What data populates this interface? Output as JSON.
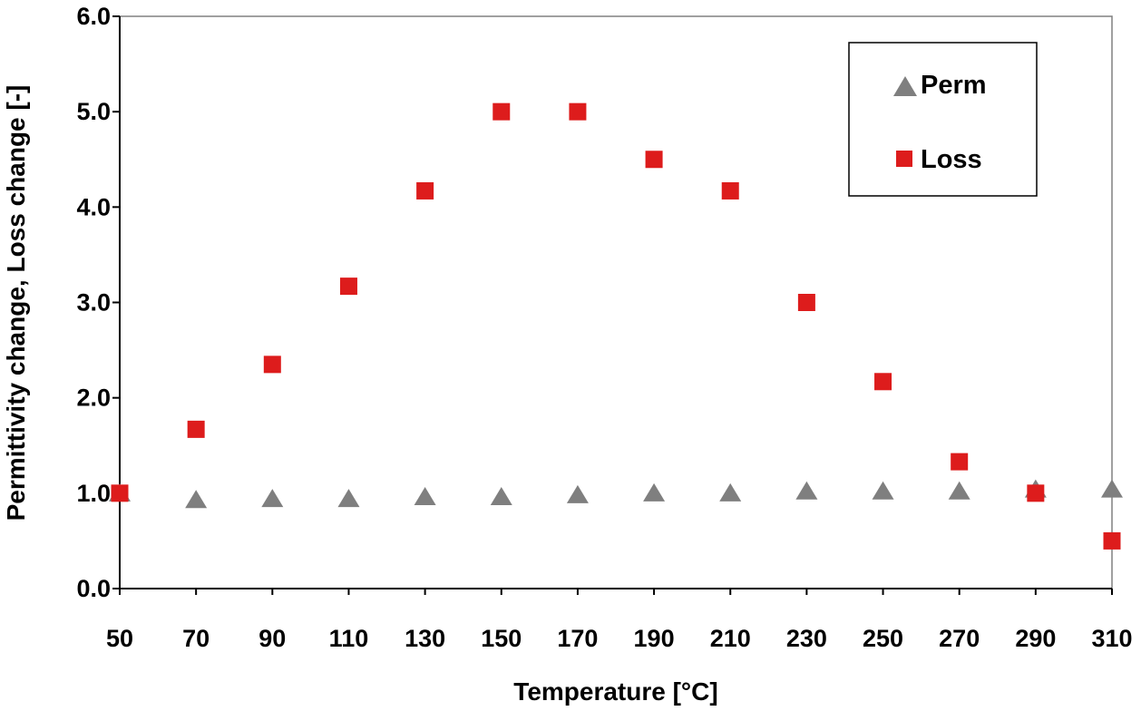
{
  "chart_data": {
    "type": "scatter",
    "title": "",
    "xlabel": "Temperature [°C]",
    "ylabel": "Permittivity change, Loss change [-]",
    "xlim": [
      50,
      310
    ],
    "ylim": [
      0.0,
      6.0
    ],
    "x_ticks": [
      "50",
      "70",
      "90",
      "110",
      "130",
      "150",
      "170",
      "190",
      "210",
      "230",
      "250",
      "270",
      "290",
      "310"
    ],
    "y_ticks": [
      "0.0",
      "1.0",
      "2.0",
      "3.0",
      "4.0",
      "5.0",
      "6.0"
    ],
    "grid": false,
    "legend_position": "top-right",
    "series": [
      {
        "name": "Perm",
        "marker": "triangle",
        "color": "#7f7f7f",
        "x": [
          50,
          70,
          90,
          110,
          130,
          150,
          170,
          190,
          210,
          230,
          250,
          270,
          290,
          310
        ],
        "y": [
          1.0,
          0.93,
          0.94,
          0.94,
          0.96,
          0.96,
          0.98,
          1.0,
          1.0,
          1.02,
          1.02,
          1.02,
          1.04,
          1.04
        ]
      },
      {
        "name": "Loss",
        "marker": "square",
        "color": "#dd1c1c",
        "x": [
          50,
          70,
          90,
          110,
          130,
          150,
          170,
          190,
          210,
          230,
          250,
          270,
          290,
          310
        ],
        "y": [
          1.0,
          1.67,
          2.35,
          3.17,
          4.17,
          5.0,
          5.0,
          4.5,
          4.17,
          3.0,
          2.17,
          1.33,
          1.0,
          0.5
        ]
      }
    ]
  }
}
